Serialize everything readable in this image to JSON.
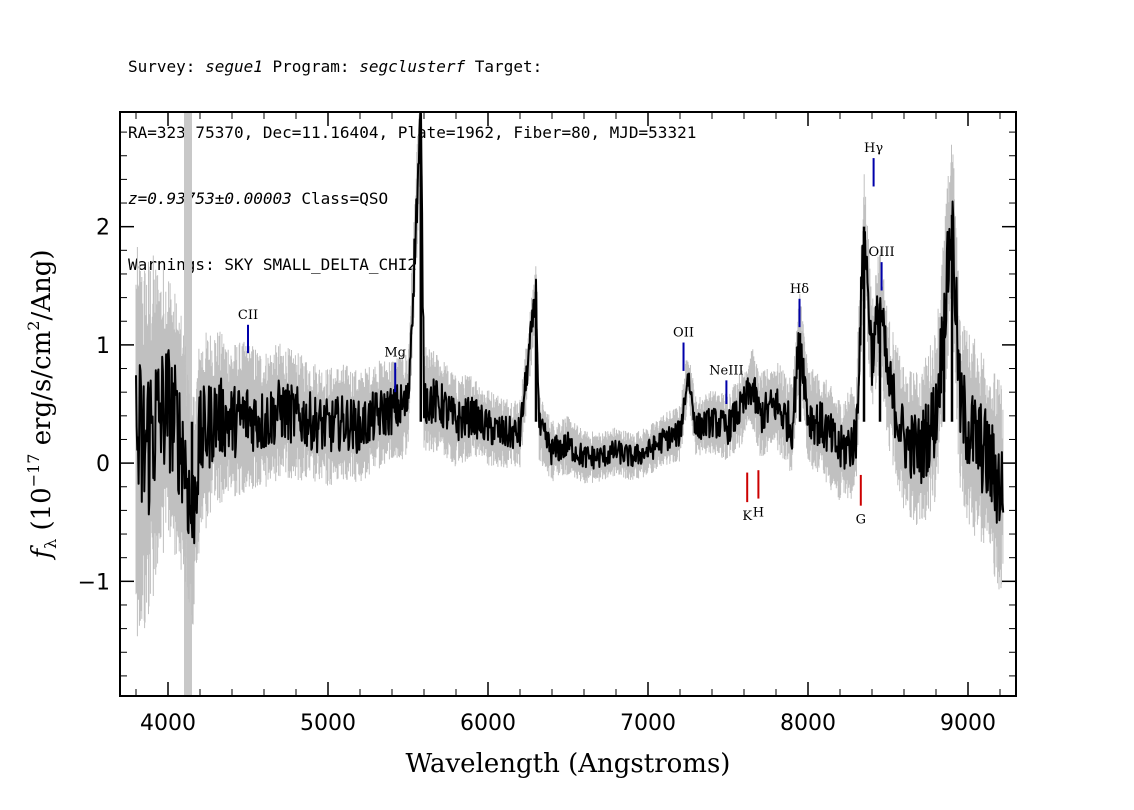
{
  "header": {
    "line1": {
      "survey_label": "Survey: ",
      "survey": "segue1",
      "program_label": " Program: ",
      "program": "segclusterf",
      "target_label": " Target:"
    },
    "line2": "RA=323.75370, Dec=11.16404, Plate=1962, Fiber=80, MJD=53321",
    "line3": {
      "redshift": "z=0.93753±0.00003",
      "class": " Class=QSO"
    },
    "line4": "Warnings: SKY SMALL_DELTA_CHI2"
  },
  "chart_data": {
    "type": "line",
    "xlabel": "Wavelength (Angstroms)",
    "ylabel_parts": {
      "f": "f",
      "sub": "λ",
      "open": " (10",
      "exp1": "−17",
      "mid": " erg/s/cm",
      "exp2": "2",
      "close": "/Ang)"
    },
    "xlim": [
      3700,
      9300
    ],
    "ylim": [
      -1.97,
      2.97
    ],
    "xticks": [
      4000,
      5000,
      6000,
      7000,
      8000,
      9000
    ],
    "xtick_labels": [
      "4000",
      "5000",
      "6000",
      "7000",
      "8000",
      "9000"
    ],
    "yticks": [
      -1,
      0,
      1,
      2
    ],
    "ytick_labels": [
      "−1",
      "0",
      "1",
      "2"
    ],
    "masked_region": [
      4100,
      4150
    ],
    "series": [
      {
        "role": "error",
        "color": "#c0c0c0",
        "x": [
          3800,
          3850,
          3900,
          3950,
          4000,
          4050,
          4200,
          4300,
          4400,
          4500,
          4600,
          4700,
          4800,
          4900,
          5000,
          5200,
          5400,
          5600,
          5800,
          6000,
          6200,
          6400,
          6600,
          6800,
          7000,
          7200,
          7400,
          7600,
          7800,
          8000,
          8200,
          8400,
          8600,
          8800,
          9000,
          9200
        ],
        "y": [
          1.1,
          1.1,
          1.0,
          0.85,
          0.8,
          0.75,
          0.6,
          0.5,
          0.45,
          0.42,
          0.4,
          0.38,
          0.36,
          0.35,
          0.34,
          0.32,
          0.3,
          0.3,
          0.26,
          0.22,
          0.2,
          0.18,
          0.15,
          0.14,
          0.14,
          0.16,
          0.18,
          0.22,
          0.25,
          0.28,
          0.3,
          0.35,
          0.4,
          0.5,
          0.55,
          0.6
        ]
      },
      {
        "role": "flux",
        "color": "#000000",
        "x": [
          3800,
          3850,
          3900,
          3950,
          4000,
          4100,
          4150,
          4200,
          4300,
          4400,
          4500,
          4600,
          4700,
          4800,
          4900,
          5000,
          5100,
          5200,
          5300,
          5400,
          5500,
          5580,
          5600,
          5700,
          5800,
          5900,
          6000,
          6100,
          6200,
          6300,
          6320,
          6400,
          6500,
          6600,
          6700,
          6800,
          6900,
          7000,
          7100,
          7200,
          7250,
          7300,
          7400,
          7500,
          7600,
          7650,
          7700,
          7800,
          7900,
          7950,
          8000,
          8100,
          8200,
          8300,
          8350,
          8400,
          8450,
          8500,
          8600,
          8700,
          8800,
          8850,
          8900,
          8950,
          9000,
          9050,
          9100,
          9200
        ],
        "y": [
          0.2,
          0.1,
          0.3,
          0.4,
          0.5,
          0.1,
          -0.5,
          0.2,
          0.4,
          0.35,
          0.4,
          0.35,
          0.45,
          0.4,
          0.35,
          0.3,
          0.35,
          0.3,
          0.4,
          0.45,
          0.5,
          2.95,
          0.55,
          0.5,
          0.35,
          0.4,
          0.3,
          0.25,
          0.25,
          1.45,
          0.3,
          0.1,
          0.15,
          0.05,
          0.05,
          0.1,
          0.05,
          0.1,
          0.2,
          0.25,
          0.75,
          0.3,
          0.35,
          0.3,
          0.5,
          0.65,
          0.4,
          0.5,
          0.3,
          1.1,
          0.4,
          0.3,
          0.1,
          0.2,
          2.0,
          0.9,
          1.35,
          0.7,
          0.2,
          0.1,
          0.4,
          1.2,
          2.1,
          0.5,
          0.3,
          0.2,
          0.1,
          -0.2
        ]
      }
    ],
    "line_markers": [
      {
        "label": "CII",
        "x": 4500,
        "color": "#0000aa",
        "y_range": [
          0.93,
          1.17
        ],
        "label_above": true
      },
      {
        "label": "Mg",
        "x": 5420,
        "color": "#0000aa",
        "y_range": [
          0.6,
          0.85
        ],
        "label_above": true
      },
      {
        "label": "OII",
        "x": 7222,
        "color": "#0000aa",
        "y_range": [
          0.78,
          1.02
        ],
        "label_above": true
      },
      {
        "label": "NeIII",
        "x": 7490,
        "color": "#0000aa",
        "y_range": [
          0.5,
          0.7
        ],
        "label_above": true
      },
      {
        "label": "Hδ",
        "x": 7947,
        "color": "#0000aa",
        "y_range": [
          1.15,
          1.39
        ],
        "label_above": true
      },
      {
        "label": "Hγ",
        "x": 8410,
        "color": "#0000aa",
        "y_range": [
          2.34,
          2.58
        ],
        "label_above": true
      },
      {
        "label": "OIII",
        "x": 8460,
        "color": "#0000aa",
        "y_range": [
          1.46,
          1.7
        ],
        "label_above": true
      },
      {
        "label": "K",
        "x": 7620,
        "color": "#cc0000",
        "y_range": [
          -0.33,
          -0.08
        ],
        "label_above": false
      },
      {
        "label": "H",
        "x": 7690,
        "color": "#cc0000",
        "y_range": [
          -0.3,
          -0.06
        ],
        "label_above": false
      },
      {
        "label": "G",
        "x": 8330,
        "color": "#cc0000",
        "y_range": [
          -0.36,
          -0.1
        ],
        "label_above": false
      }
    ]
  }
}
